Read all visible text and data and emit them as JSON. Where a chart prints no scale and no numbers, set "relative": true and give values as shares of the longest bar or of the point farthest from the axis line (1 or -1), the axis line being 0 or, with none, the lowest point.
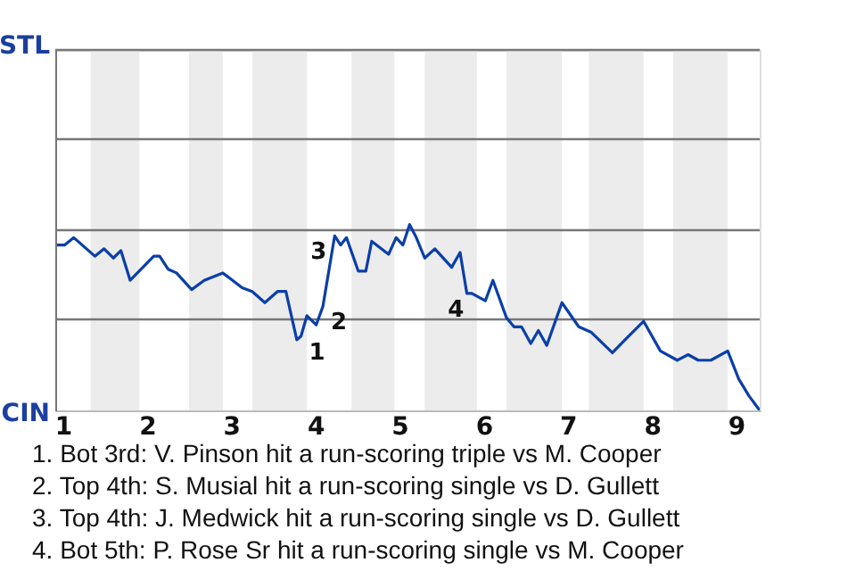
{
  "chart_data": {
    "type": "line",
    "relative": true,
    "x": [
      0.91,
      1.02,
      1.13,
      1.38,
      1.49,
      1.6,
      1.69,
      1.8,
      1.93,
      2.08,
      2.15,
      2.25,
      2.35,
      2.53,
      2.68,
      2.9,
      3.13,
      3.25,
      3.4,
      3.55,
      3.65,
      3.78,
      3.83,
      3.9,
      4.01,
      4.09,
      4.23,
      4.3,
      4.37,
      4.51,
      4.6,
      4.67,
      4.87,
      4.96,
      5.04,
      5.12,
      5.2,
      5.3,
      5.42,
      5.62,
      5.72,
      5.8,
      5.86,
      6.02,
      6.11,
      6.27,
      6.36,
      6.45,
      6.56,
      6.65,
      6.75,
      6.93,
      7.13,
      7.28,
      7.53,
      7.68,
      7.9,
      8.1,
      8.3,
      8.43,
      8.55,
      8.7,
      8.9,
      9.03,
      9.15,
      9.28
    ],
    "series": [
      {
        "color": "#0b3fa8",
        "values": [
          0.89,
          0.89,
          0.93,
          0.83,
          0.87,
          0.82,
          0.86,
          0.7,
          0.76,
          0.83,
          0.83,
          0.76,
          0.74,
          0.65,
          0.7,
          0.74,
          0.66,
          0.64,
          0.58,
          0.64,
          0.64,
          0.38,
          0.4,
          0.51,
          0.46,
          0.56,
          0.94,
          0.89,
          0.93,
          0.75,
          0.75,
          0.91,
          0.84,
          0.93,
          0.89,
          1,
          0.93,
          0.82,
          0.87,
          0.77,
          0.85,
          0.63,
          0.63,
          0.59,
          0.7,
          0.5,
          0.45,
          0.45,
          0.36,
          0.43,
          0.35,
          0.58,
          0.45,
          0.42,
          0.31,
          0.38,
          0.48,
          0.32,
          0.27,
          0.3,
          0.27,
          0.27,
          0.32,
          0.17,
          0.08,
          0
        ]
      }
    ],
    "xlim": [
      0.91,
      9.28
    ],
    "xticks": [
      1,
      2,
      3,
      4,
      5,
      6,
      7,
      8,
      9
    ],
    "ref_lines": [
      {
        "axis": "y",
        "value": 0.49,
        "color": "#777777"
      },
      {
        "axis": "y",
        "value": 0.97,
        "color": "#777777"
      },
      {
        "axis": "y",
        "value": 1.46,
        "color": "#777777"
      },
      {
        "axis": "y",
        "value": 1.94,
        "color": "#777777"
      }
    ],
    "marker": "none",
    "line_style": "solid",
    "bands": [
      {
        "axis": "x",
        "from": 1.33,
        "to": 1.91,
        "color": "#ececec"
      },
      {
        "axis": "x",
        "from": 2.5,
        "to": 2.9,
        "color": "#ececec"
      },
      {
        "axis": "x",
        "from": 3.25,
        "to": 3.9,
        "color": "#ececec"
      },
      {
        "axis": "x",
        "from": 4.43,
        "to": 4.94,
        "color": "#ececec"
      },
      {
        "axis": "x",
        "from": 5.3,
        "to": 5.92,
        "color": "#ececec"
      },
      {
        "axis": "x",
        "from": 6.27,
        "to": 6.93,
        "color": "#ececec"
      },
      {
        "axis": "x",
        "from": 7.25,
        "to": 7.9,
        "color": "#ececec"
      },
      {
        "axis": "x",
        "from": 8.25,
        "to": 8.9,
        "color": "#ececec"
      }
    ],
    "annotations": [
      "STL",
      "CIN",
      {
        "text": "1",
        "x": 3.83,
        "y": 0.4
      },
      {
        "text": "2",
        "x": 4.09,
        "y": 0.56
      },
      {
        "text": "3",
        "x": 4.23,
        "y": 0.94
      },
      {
        "text": "4",
        "x": 5.86,
        "y": 0.63
      },
      "1. Bot 3rd: V. Pinson hit a run-scoring triple vs M. Cooper",
      "2. Top 4th: S. Musial hit a run-scoring single vs D. Gullett",
      "3. Top 4th: J. Medwick hit a run-scoring single vs D. Gullett",
      "4. Bot 5th: P. Rose Sr hit a run-scoring single vs M. Cooper"
    ]
  }
}
